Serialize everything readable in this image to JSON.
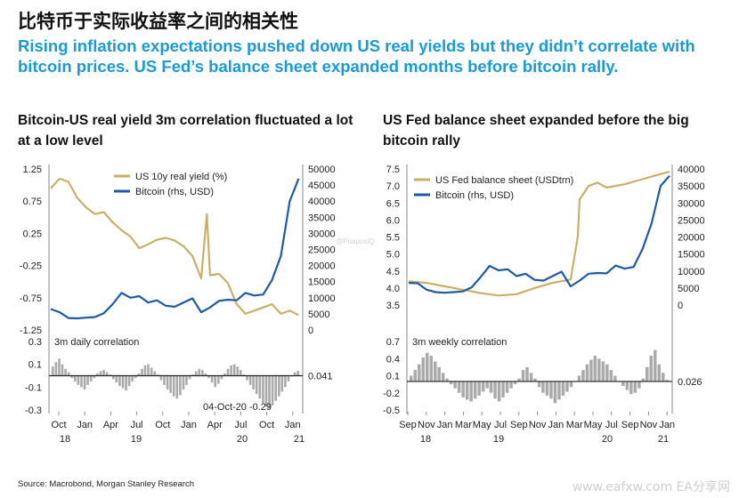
{
  "title": "比特币于实际收益率之间的相关性",
  "subtitle": "Rising inflation expectations pushed down US real yields but they didn’t correlate with bitcoin prices. US Fed’s balance sheet expanded months before bitcoin rally.",
  "source": "Source: Macrobond, Morgan Stanley Research",
  "watermark": "www.eafxw.com EA分享网",
  "small_watermark": "@PriapusIQ",
  "colors": {
    "gold": "#c8b06a",
    "blue": "#1f5aa6",
    "gray": "#aaaaaa",
    "title_blue": "#1a9ad6"
  },
  "chart_data": [
    {
      "type": "line",
      "panel_title": "Bitcoin-US real yield 3m correlation fluctuated a lot at a low level",
      "series": [
        {
          "name": "US 10y real yield (%)",
          "axis": "left",
          "x": [
            "2018-10",
            "2018-11",
            "2018-12",
            "2019-01",
            "2019-02",
            "2019-03",
            "2019-04",
            "2019-05",
            "2019-06",
            "2019-07",
            "2019-08",
            "2019-09",
            "2019-10",
            "2019-11",
            "2019-12",
            "2020-01",
            "2020-02",
            "2020-03",
            "2020-03-20",
            "2020-04",
            "2020-05",
            "2020-06",
            "2020-07",
            "2020-08",
            "2020-09",
            "2020-10",
            "2020-11",
            "2020-12",
            "2021-01",
            "2021-02"
          ],
          "values": [
            0.95,
            1.1,
            1.05,
            0.8,
            0.65,
            0.55,
            0.58,
            0.42,
            0.3,
            0.2,
            0.02,
            0.08,
            0.15,
            0.18,
            0.14,
            0.05,
            -0.1,
            -0.45,
            0.55,
            -0.4,
            -0.38,
            -0.52,
            -0.85,
            -1.0,
            -0.95,
            -0.9,
            -0.85,
            -1.0,
            -0.95,
            -1.02
          ]
        },
        {
          "name": "Bitcoin (rhs, USD)",
          "axis": "right",
          "x": [
            "2018-10",
            "2018-11",
            "2018-12",
            "2019-01",
            "2019-02",
            "2019-03",
            "2019-04",
            "2019-05",
            "2019-06",
            "2019-07",
            "2019-08",
            "2019-09",
            "2019-10",
            "2019-11",
            "2019-12",
            "2020-01",
            "2020-02",
            "2020-03",
            "2020-04",
            "2020-05",
            "2020-06",
            "2020-07",
            "2020-08",
            "2020-09",
            "2020-10",
            "2020-11",
            "2020-12",
            "2021-01",
            "2021-02"
          ],
          "values": [
            6500,
            5500,
            3700,
            3600,
            3800,
            4000,
            5200,
            8000,
            11500,
            10000,
            10500,
            8500,
            9200,
            7500,
            7200,
            8500,
            9800,
            5500,
            7000,
            9000,
            9400,
            9200,
            11500,
            10700,
            11000,
            15500,
            23000,
            40000,
            47000
          ]
        }
      ],
      "left_axis": {
        "ticks": [
          "1.25",
          "0.75",
          "0.25",
          "-0.25",
          "-0.75",
          "-1.25"
        ],
        "ylim": [
          -1.25,
          1.25
        ]
      },
      "right_axis": {
        "ticks": [
          "50000",
          "45000",
          "40000",
          "35000",
          "30000",
          "25000",
          "20000",
          "15000",
          "10000",
          "5000",
          "0"
        ],
        "ylim": [
          0,
          50000
        ]
      },
      "sub_chart": {
        "type": "bar",
        "label": "3m daily correlation",
        "ticks": [
          "0.3",
          "0.1",
          "-0.1",
          "-0.3"
        ],
        "ylim": [
          -0.3,
          0.3
        ],
        "last_value_label": "0.041",
        "annotation": "04-Oct-20 -0.29",
        "values": [
          0.08,
          0.12,
          0.15,
          0.1,
          0.06,
          0.03,
          -0.02,
          -0.05,
          -0.08,
          -0.1,
          -0.12,
          -0.08,
          -0.05,
          -0.02,
          0.02,
          0.04,
          0.05,
          0.03,
          0.01,
          -0.03,
          -0.06,
          -0.09,
          -0.11,
          -0.13,
          -0.09,
          -0.05,
          -0.02,
          0.02,
          0.06,
          0.09,
          0.1,
          0.07,
          0.04,
          0.01,
          -0.04,
          -0.08,
          -0.12,
          -0.15,
          -0.18,
          -0.2,
          -0.17,
          -0.12,
          -0.08,
          -0.03,
          0.01,
          0.04,
          0.06,
          0.05,
          0.02,
          -0.02,
          -0.06,
          -0.1,
          -0.07,
          -0.03,
          0.02,
          0.06,
          0.09,
          0.1,
          0.08,
          0.05,
          0.01,
          -0.04,
          -0.08,
          -0.12,
          -0.16,
          -0.2,
          -0.24,
          -0.27,
          -0.29,
          -0.26,
          -0.22,
          -0.18,
          -0.14,
          -0.1,
          -0.05,
          0.0,
          0.03,
          0.041
        ]
      },
      "x_ticks": [
        "Oct",
        "Jan",
        "Apr",
        "Jul",
        "Oct",
        "Jan",
        "Apr",
        "Jul",
        "Oct",
        "Jan"
      ],
      "x_years": [
        "18",
        "19",
        "20",
        "21"
      ],
      "legend_position": "top-left"
    },
    {
      "type": "line",
      "panel_title": "US Fed balance sheet expanded before the big bitcoin rally",
      "series": [
        {
          "name": "US Fed balance sheet (USDtrn)",
          "axis": "left",
          "x": [
            "2018-09",
            "2018-11",
            "2019-01",
            "2019-03",
            "2019-05",
            "2019-07",
            "2019-09",
            "2019-11",
            "2020-01",
            "2020-03",
            "2020-03-25",
            "2020-04",
            "2020-05",
            "2020-06",
            "2020-07",
            "2020-09",
            "2020-11",
            "2021-01",
            "2021-02"
          ],
          "values": [
            4.2,
            4.15,
            4.05,
            3.95,
            3.85,
            3.78,
            3.82,
            4.0,
            4.15,
            4.25,
            5.5,
            6.6,
            7.0,
            7.1,
            6.95,
            7.05,
            7.2,
            7.35,
            7.42
          ]
        },
        {
          "name": "Bitcoin (rhs, USD)",
          "axis": "right",
          "x": [
            "2018-09",
            "2018-10",
            "2018-11",
            "2018-12",
            "2019-01",
            "2019-02",
            "2019-03",
            "2019-04",
            "2019-05",
            "2019-06",
            "2019-07",
            "2019-08",
            "2019-09",
            "2019-10",
            "2019-11",
            "2019-12",
            "2020-01",
            "2020-02",
            "2020-03",
            "2020-04",
            "2020-05",
            "2020-06",
            "2020-07",
            "2020-08",
            "2020-09",
            "2020-10",
            "2020-11",
            "2020-12",
            "2021-01",
            "2021-02"
          ],
          "values": [
            6500,
            6400,
            4500,
            3800,
            3600,
            3800,
            4000,
            5200,
            8200,
            11500,
            10200,
            10500,
            8500,
            9200,
            7400,
            7200,
            8500,
            9800,
            5500,
            7200,
            9200,
            9400,
            9300,
            11600,
            10700,
            11200,
            16500,
            24000,
            35000,
            38000
          ]
        }
      ],
      "left_axis": {
        "ticks": [
          "7.5",
          "7.0",
          "6.5",
          "6.0",
          "5.5",
          "5.0",
          "4.5",
          "4.0",
          "3.5"
        ],
        "ylim": [
          3.5,
          7.5
        ]
      },
      "right_axis": {
        "ticks": [
          "40000",
          "35000",
          "30000",
          "25000",
          "20000",
          "15000",
          "10000",
          "5000",
          "0"
        ],
        "ylim": [
          0,
          40000
        ]
      },
      "sub_chart": {
        "type": "bar",
        "label": "3m weekly correlation",
        "ticks": [
          "0.7",
          "0.4",
          "0.1",
          "-0.2",
          "-0.5"
        ],
        "ylim": [
          -0.5,
          0.7
        ],
        "last_value_label": "0.026",
        "values": [
          0.1,
          0.2,
          0.3,
          0.42,
          0.5,
          0.45,
          0.35,
          0.25,
          0.15,
          0.05,
          -0.05,
          -0.12,
          -0.2,
          -0.28,
          -0.32,
          -0.35,
          -0.3,
          -0.25,
          -0.18,
          -0.12,
          -0.2,
          -0.3,
          -0.35,
          -0.28,
          -0.2,
          -0.12,
          -0.05,
          0.05,
          0.2,
          0.25,
          0.15,
          0.05,
          -0.1,
          -0.2,
          -0.25,
          -0.3,
          -0.38,
          -0.32,
          -0.25,
          -0.18,
          -0.1,
          0.0,
          0.1,
          0.2,
          0.3,
          0.38,
          0.45,
          0.4,
          0.35,
          0.3,
          0.2,
          0.1,
          0.0,
          -0.08,
          -0.15,
          -0.22,
          -0.2,
          -0.12,
          0.05,
          0.25,
          0.45,
          0.55,
          0.3,
          0.15,
          0.026
        ]
      },
      "x_ticks": [
        "Sep",
        "Nov",
        "Jan",
        "Mar",
        "May",
        "Jul",
        "Sep",
        "Nov",
        "Jan",
        "Mar",
        "May",
        "Jul",
        "Sep",
        "Nov",
        "Jan"
      ],
      "x_years": [
        "18",
        "19",
        "20",
        "21"
      ],
      "legend_position": "top-left"
    }
  ]
}
